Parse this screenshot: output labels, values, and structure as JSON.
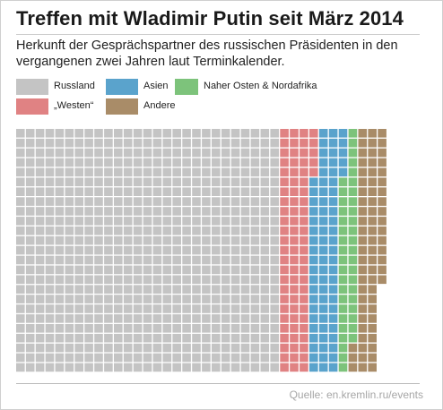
{
  "title": "Treffen mit Wladimir Putin seit März 2014",
  "subtitle": "Herkunft der Gesprächspartner des russischen Präsidenten in den vergangenen zwei Jahren laut Terminkalender.",
  "source": "Quelle: en.kremlin.ru/events",
  "colors": {
    "russland": "#c4c4c4",
    "westen": "#e08283",
    "asien": "#5aa3cc",
    "nahost": "#7dc37b",
    "andere": "#a98c68"
  },
  "legend": [
    {
      "key": "russland",
      "label": "Russland"
    },
    {
      "key": "asien",
      "label": "Asien"
    },
    {
      "key": "nahost",
      "label": "Naher Osten & Nordafrika"
    },
    {
      "key": "westen",
      "label": "„Westen“"
    },
    {
      "key": "andere",
      "label": "Andere"
    }
  ],
  "chart_data": {
    "type": "waffle",
    "unit": "1 Treffen pro Kästchen",
    "categories": [
      "Russland",
      "„Westen“",
      "Asien",
      "Naher Osten & Nordafrika",
      "Andere"
    ],
    "values": [
      675,
      80,
      75,
      42,
      69
    ]
  }
}
